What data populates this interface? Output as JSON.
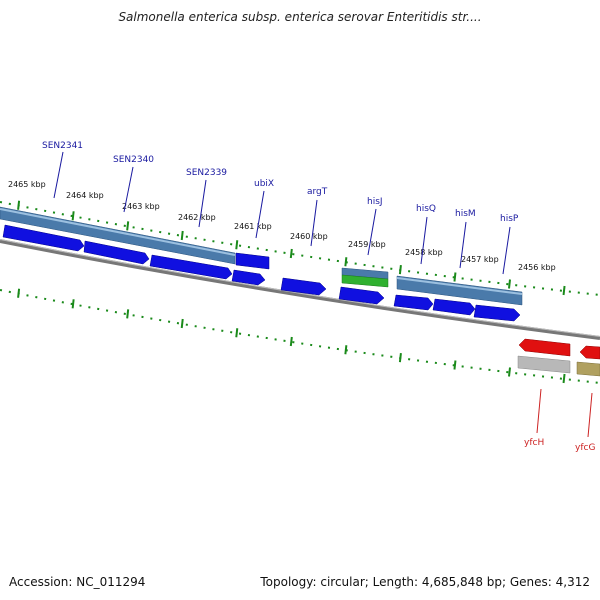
{
  "title": "Salmonella enterica subsp. enterica serovar Enteritidis str....",
  "accession": "Accession: NC_011294",
  "summary": "Topology: circular; Length: 4,685,848 bp; Genes: 4,312",
  "colors": {
    "cds": "#1010e0",
    "gene": "#4a7aaa",
    "rna": "#30b030",
    "ticks": "#1a8a1a",
    "backbone": "#808080",
    "reverse_cds": "#e01010",
    "reverse_gene": "#b8b8b8",
    "pseudo": "#b0a060",
    "label_forward": "#1a1aa0",
    "label_reverse": "#cc2222"
  },
  "ruler_labels": [
    "2465 kbp",
    "2464 kbp",
    "2463 kbp",
    "2462 kbp",
    "2461 kbp",
    "2460 kbp",
    "2459 kbp",
    "2458 kbp",
    "2457 kbp",
    "2456 kbp"
  ],
  "forward_gene_labels": [
    "SEN2341",
    "SEN2340",
    "SEN2339",
    "ubiX",
    "argT",
    "hisJ",
    "hisQ",
    "hisM",
    "hisP"
  ],
  "reverse_gene_labels": [
    "yfcH",
    "yfcG"
  ]
}
